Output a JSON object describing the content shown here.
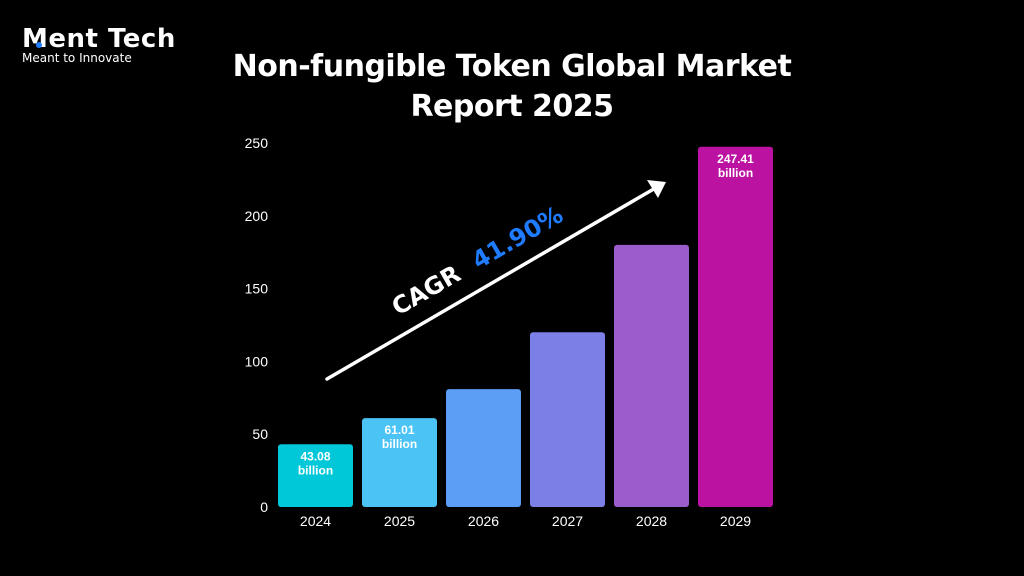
{
  "logo": {
    "name": "Ment Tech",
    "tagline": "Meant to Innovate",
    "accent_color": "#1f7bff"
  },
  "chart_data": {
    "type": "bar",
    "title": "Non-fungible Token Global Market Report 2025",
    "categories": [
      "2024",
      "2025",
      "2026",
      "2027",
      "2028",
      "2029"
    ],
    "values": [
      43.08,
      61.01,
      81,
      120,
      180,
      247.41
    ],
    "data_labels": [
      [
        "43.08",
        "billion"
      ],
      [
        "61.01",
        "billion"
      ],
      null,
      null,
      null,
      [
        "247.41",
        "billion"
      ]
    ],
    "bar_colors": [
      "#00c8d9",
      "#4cc3f5",
      "#5c9df5",
      "#7b7fe6",
      "#9b5ccc",
      "#bb12a2"
    ],
    "ylim": [
      0,
      250
    ],
    "yticks": [
      0,
      50,
      100,
      150,
      200,
      250
    ],
    "xlabel": "",
    "ylabel": "",
    "grid": false,
    "annotation": {
      "label": "CAGR",
      "value": "41.90%",
      "label_color": "#ffffff",
      "value_color": "#1f7bff"
    }
  }
}
